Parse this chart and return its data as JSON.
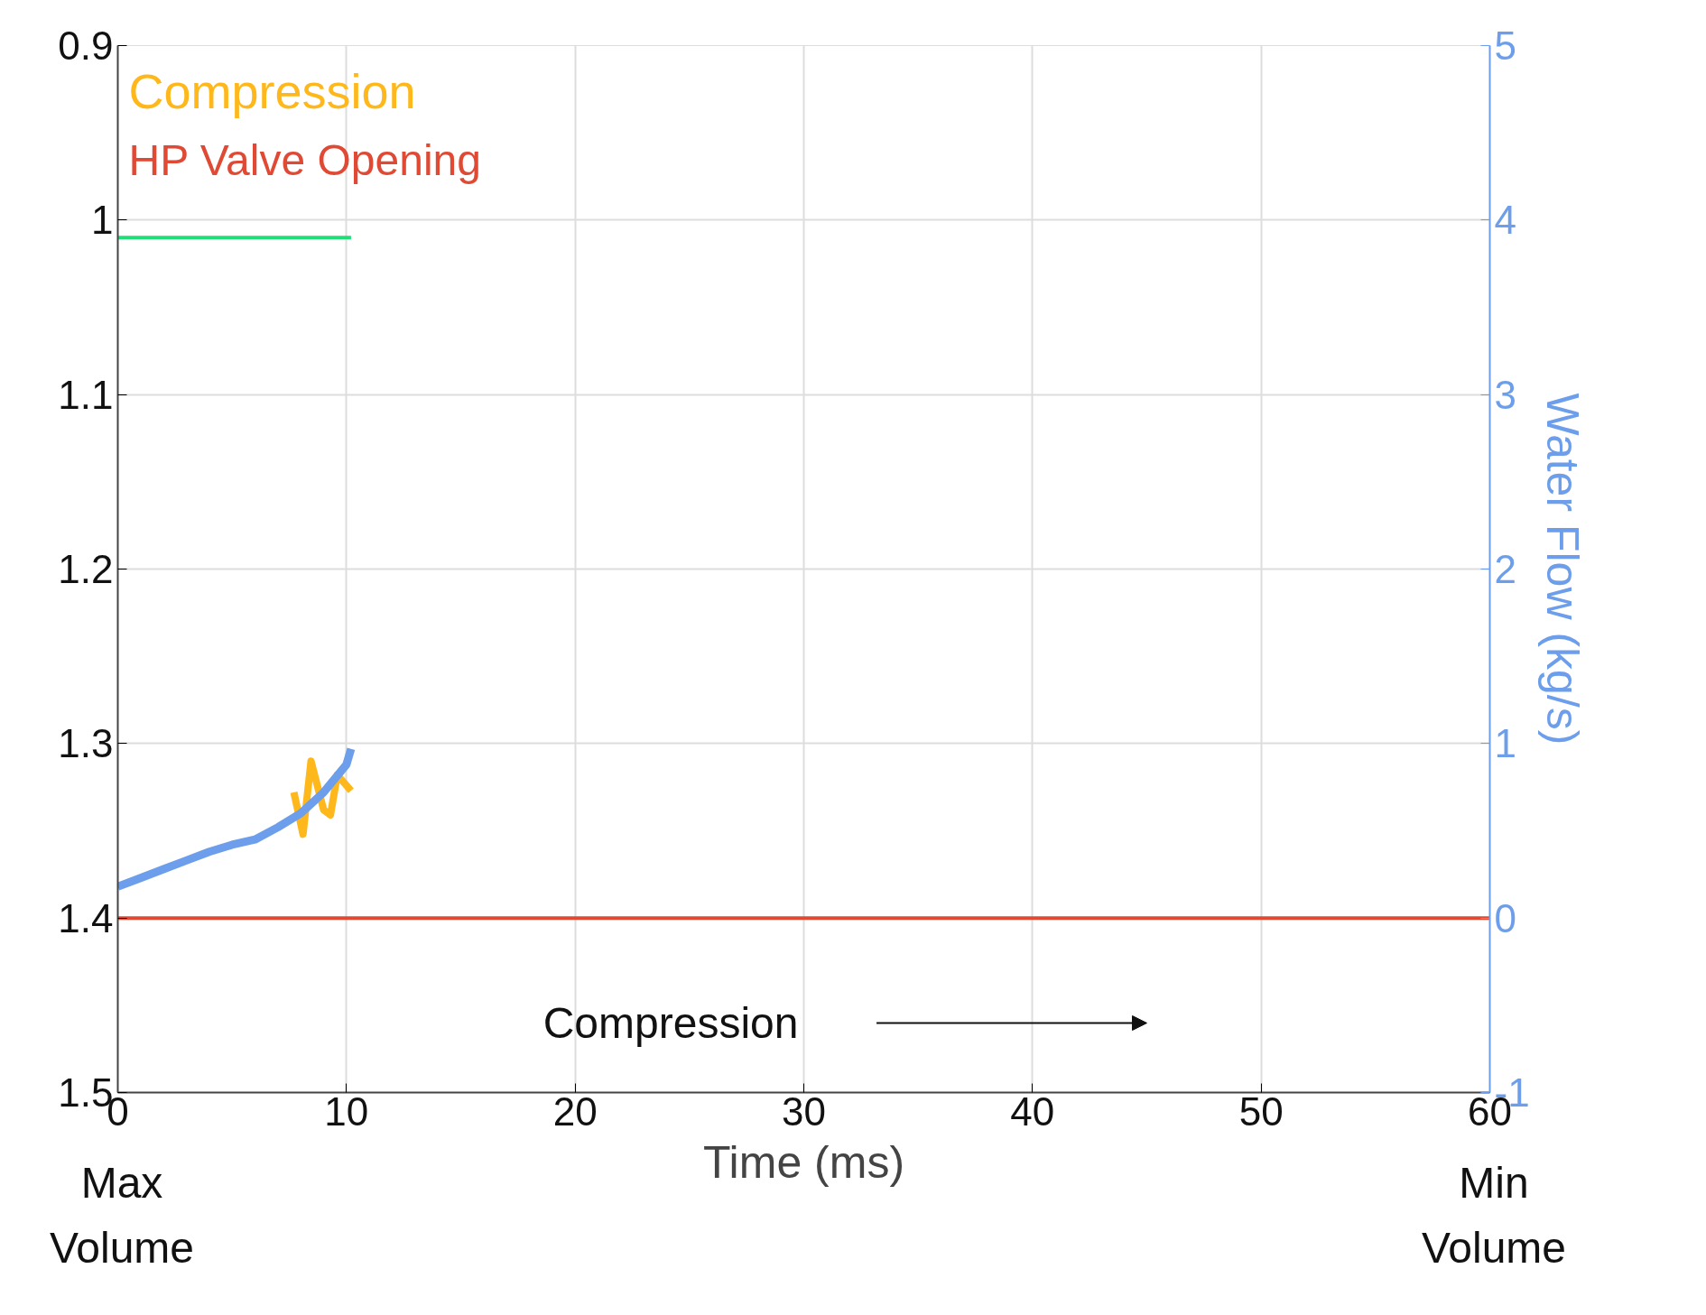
{
  "chart_data": {
    "type": "line",
    "xlabel": "Time (ms)",
    "y2label": "Water Flow (kg/s)",
    "xlim": [
      0,
      60
    ],
    "xticks": [
      0,
      10,
      20,
      30,
      40,
      50,
      60
    ],
    "ylim": [
      1.5,
      0.9
    ],
    "yticks": [
      0.9,
      1,
      1.1,
      1.2,
      1.3,
      1.4,
      1.5
    ],
    "y2lim": [
      -1,
      5
    ],
    "y2ticks": [
      -1,
      0,
      1,
      2,
      3,
      4,
      5
    ],
    "grid": true,
    "legend": "top left",
    "series": [
      {
        "name": "Compression",
        "color": "#ffb81c",
        "axis": "y2",
        "x": [
          7.7,
          8.1,
          8.45,
          9.0,
          9.3,
          9.6,
          10.2
        ],
        "values": [
          0.72,
          0.48,
          0.9,
          0.62,
          0.59,
          0.82,
          0.73
        ]
      },
      {
        "name": "HP Valve Opening",
        "color": "#e04a35",
        "axis": "y",
        "x": [
          0,
          60
        ],
        "values": [
          1.4,
          1.4
        ]
      },
      {
        "color": "#6d9eeb",
        "axis": "y2",
        "x": [
          0,
          1,
          2,
          3,
          4,
          5,
          6,
          7,
          8,
          9,
          10,
          10.2
        ],
        "values": [
          0.18,
          0.23,
          0.28,
          0.33,
          0.38,
          0.42,
          0.45,
          0.52,
          0.6,
          0.72,
          0.88,
          0.97
        ]
      },
      {
        "color": "#22dd77",
        "axis": "y",
        "x": [
          0,
          10.2
        ],
        "values": [
          1.01,
          1.01
        ]
      }
    ],
    "annotations": [
      "Max\nVolume",
      "Min\nVolume",
      "Compression"
    ]
  }
}
